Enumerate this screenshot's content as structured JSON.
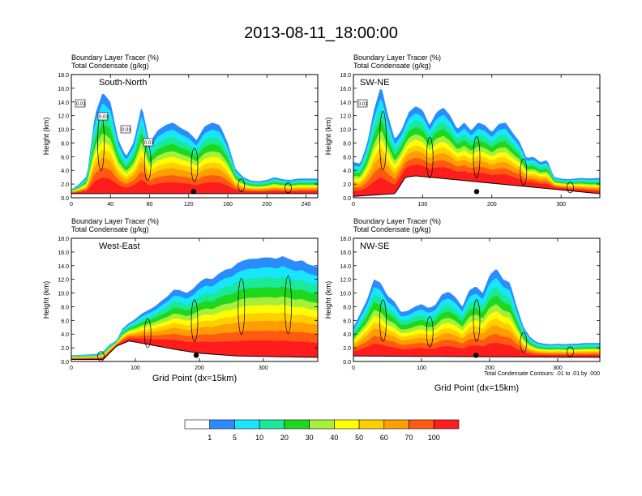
{
  "title": "2013-08-11_18:00:00",
  "panel_title_line1": "Boundary Layer Tracer   (%)",
  "panel_title_line2": "Total Condensate   (g/kg)",
  "ylabel": "Height (km)",
  "xlabel": "Grid Point (dx=15km)",
  "contour_note": "Total Condensate Contours: .01 to .01 by .000",
  "colorbar": {
    "labels": [
      "1",
      "5",
      "10",
      "20",
      "30",
      "40",
      "50",
      "60",
      "70",
      "100"
    ],
    "colors": [
      "#ffffff",
      "#2b8cff",
      "#18e6ff",
      "#1ae89a",
      "#1ed81e",
      "#a6f03c",
      "#ffff00",
      "#ffd000",
      "#ff9e00",
      "#ff5a12",
      "#ff1c1c"
    ]
  },
  "chart_data": [
    {
      "type": "heatmap",
      "name": "South-North",
      "title": "Boundary Layer Tracer (%) / Total Condensate (g/kg)",
      "xlabel": "",
      "ylabel": "Height (km)",
      "xlim": [
        0,
        252
      ],
      "ylim": [
        0,
        18
      ],
      "xticks": [
        0,
        40,
        80,
        120,
        160,
        200,
        240
      ],
      "yticks": [
        "0.0",
        "2.0",
        "4.0",
        "6.0",
        "8.0",
        "10.0",
        "12.0",
        "14.0",
        "16.0",
        "18.0"
      ],
      "marker_x": 125,
      "contour_labels": [
        "0.01",
        "0.01",
        "0.01",
        "0.01"
      ],
      "top_heights": [
        [
          0,
          1.2
        ],
        [
          8,
          2.0
        ],
        [
          16,
          3.2
        ],
        [
          24,
          12.0
        ],
        [
          32,
          15.4
        ],
        [
          40,
          14.0
        ],
        [
          48,
          8.5
        ],
        [
          56,
          6.0
        ],
        [
          64,
          8.2
        ],
        [
          72,
          13.5
        ],
        [
          80,
          8.0
        ],
        [
          88,
          9.8
        ],
        [
          96,
          10.6
        ],
        [
          104,
          11.0
        ],
        [
          112,
          10.2
        ],
        [
          120,
          9.6
        ],
        [
          128,
          8.4
        ],
        [
          136,
          10.4
        ],
        [
          144,
          11.0
        ],
        [
          152,
          10.6
        ],
        [
          160,
          8.0
        ],
        [
          168,
          4.2
        ],
        [
          176,
          3.0
        ],
        [
          184,
          2.5
        ],
        [
          192,
          2.4
        ],
        [
          200,
          2.6
        ],
        [
          208,
          3.0
        ],
        [
          216,
          2.7
        ],
        [
          224,
          2.6
        ],
        [
          232,
          2.8
        ],
        [
          240,
          2.8
        ],
        [
          252,
          2.8
        ]
      ],
      "ground": [
        [
          0,
          0.6
        ],
        [
          252,
          0.6
        ]
      ]
    },
    {
      "type": "heatmap",
      "name": "SW-NE",
      "title": "Boundary Layer Tracer (%) / Total Condensate (g/kg)",
      "xlabel": "",
      "ylabel": "Height (km)",
      "xlim": [
        0,
        356
      ],
      "ylim": [
        0,
        18
      ],
      "xticks": [
        0,
        100,
        200,
        300
      ],
      "yticks": [
        "0.0",
        "2.0",
        "4.0",
        "6.0",
        "8.0",
        "10.0",
        "12.0",
        "14.0",
        "16.0",
        "18.0"
      ],
      "marker_x": 178,
      "contour_labels": [
        "0.01"
      ],
      "top_heights": [
        [
          0,
          5.2
        ],
        [
          10,
          5.0
        ],
        [
          20,
          8.0
        ],
        [
          30,
          13.0
        ],
        [
          40,
          16.4
        ],
        [
          50,
          12.0
        ],
        [
          60,
          8.5
        ],
        [
          70,
          10.0
        ],
        [
          80,
          12.5
        ],
        [
          90,
          13.4
        ],
        [
          100,
          12.8
        ],
        [
          110,
          10.6
        ],
        [
          120,
          12.5
        ],
        [
          130,
          13.2
        ],
        [
          140,
          12.0
        ],
        [
          150,
          10.0
        ],
        [
          160,
          11.0
        ],
        [
          170,
          9.8
        ],
        [
          180,
          11.0
        ],
        [
          190,
          10.6
        ],
        [
          200,
          9.6
        ],
        [
          210,
          10.8
        ],
        [
          220,
          11.0
        ],
        [
          230,
          9.5
        ],
        [
          240,
          8.2
        ],
        [
          250,
          5.8
        ],
        [
          260,
          6.0
        ],
        [
          270,
          5.2
        ],
        [
          280,
          5.5
        ],
        [
          290,
          3.0
        ],
        [
          300,
          2.8
        ],
        [
          310,
          2.7
        ],
        [
          320,
          2.8
        ],
        [
          330,
          2.9
        ],
        [
          340,
          2.8
        ],
        [
          356,
          2.9
        ]
      ],
      "ground": [
        [
          0,
          0.2
        ],
        [
          60,
          0.6
        ],
        [
          75,
          3.0
        ],
        [
          90,
          3.2
        ],
        [
          356,
          0.6
        ]
      ]
    },
    {
      "type": "heatmap",
      "name": "West-East",
      "title": "Boundary Layer Tracer (%) / Total Condensate (g/kg)",
      "xlabel": "Grid Point (dx=15km)",
      "ylabel": "Height (km)",
      "xlim": [
        0,
        385
      ],
      "ylim": [
        0,
        18
      ],
      "xticks": [
        0,
        100,
        200,
        300
      ],
      "yticks": [
        "0.0",
        "2.0",
        "4.0",
        "6.0",
        "8.0",
        "10.0",
        "12.0",
        "14.0",
        "16.0",
        "18.0"
      ],
      "marker_x": 195,
      "contour_labels": [],
      "top_heights": [
        [
          0,
          0.9
        ],
        [
          20,
          1.0
        ],
        [
          40,
          1.1
        ],
        [
          50,
          1.5
        ],
        [
          60,
          2.5
        ],
        [
          70,
          3.0
        ],
        [
          80,
          4.8
        ],
        [
          90,
          5.6
        ],
        [
          100,
          6.2
        ],
        [
          110,
          7.0
        ],
        [
          120,
          7.5
        ],
        [
          130,
          8.0
        ],
        [
          140,
          8.8
        ],
        [
          150,
          9.5
        ],
        [
          160,
          10.5
        ],
        [
          170,
          10.4
        ],
        [
          180,
          10.0
        ],
        [
          190,
          10.6
        ],
        [
          200,
          11.6
        ],
        [
          210,
          12.2
        ],
        [
          220,
          12.0
        ],
        [
          230,
          12.8
        ],
        [
          240,
          13.4
        ],
        [
          250,
          13.6
        ],
        [
          260,
          14.4
        ],
        [
          270,
          14.8
        ],
        [
          280,
          15.0
        ],
        [
          290,
          15.0
        ],
        [
          300,
          15.2
        ],
        [
          310,
          15.2
        ],
        [
          320,
          15.0
        ],
        [
          330,
          15.4
        ],
        [
          340,
          15.0
        ],
        [
          350,
          14.6
        ],
        [
          360,
          14.8
        ],
        [
          370,
          14.2
        ],
        [
          385,
          13.8
        ]
      ],
      "ground": [
        [
          0,
          0.3
        ],
        [
          50,
          0.3
        ],
        [
          70,
          2.2
        ],
        [
          90,
          3.0
        ],
        [
          120,
          2.5
        ],
        [
          160,
          1.8
        ],
        [
          200,
          1.2
        ],
        [
          260,
          0.8
        ],
        [
          385,
          0.6
        ]
      ]
    },
    {
      "type": "heatmap",
      "name": "NW-SE",
      "title": "Boundary Layer Tracer (%) / Total Condensate (g/kg)",
      "xlabel": "Grid Point (dx=15km)",
      "ylabel": "Height (km)",
      "xlim": [
        0,
        362
      ],
      "ylim": [
        0,
        18
      ],
      "xticks": [
        0,
        100,
        200,
        300
      ],
      "yticks": [
        "0.0",
        "2.0",
        "4.0",
        "6.0",
        "8.0",
        "10.0",
        "12.0",
        "14.0",
        "16.0",
        "18.0"
      ],
      "marker_x": 180,
      "contour_labels": [],
      "top_heights": [
        [
          0,
          5.0
        ],
        [
          10,
          7.0
        ],
        [
          20,
          9.0
        ],
        [
          30,
          12.0
        ],
        [
          40,
          11.5
        ],
        [
          50,
          9.6
        ],
        [
          60,
          8.8
        ],
        [
          70,
          7.2
        ],
        [
          80,
          7.4
        ],
        [
          90,
          8.0
        ],
        [
          100,
          8.4
        ],
        [
          110,
          7.8
        ],
        [
          120,
          8.2
        ],
        [
          130,
          9.8
        ],
        [
          140,
          10.2
        ],
        [
          150,
          9.4
        ],
        [
          160,
          8.0
        ],
        [
          170,
          10.4
        ],
        [
          180,
          11.0
        ],
        [
          190,
          10.0
        ],
        [
          200,
          12.6
        ],
        [
          210,
          13.6
        ],
        [
          220,
          12.0
        ],
        [
          230,
          11.5
        ],
        [
          240,
          8.0
        ],
        [
          250,
          5.0
        ],
        [
          260,
          3.5
        ],
        [
          270,
          2.8
        ],
        [
          280,
          2.6
        ],
        [
          290,
          2.5
        ],
        [
          300,
          2.6
        ],
        [
          310,
          2.5
        ],
        [
          320,
          2.6
        ],
        [
          330,
          2.6
        ],
        [
          340,
          2.7
        ],
        [
          362,
          2.7
        ]
      ],
      "ground": [
        [
          0,
          0.8
        ],
        [
          362,
          0.6
        ]
      ]
    }
  ]
}
